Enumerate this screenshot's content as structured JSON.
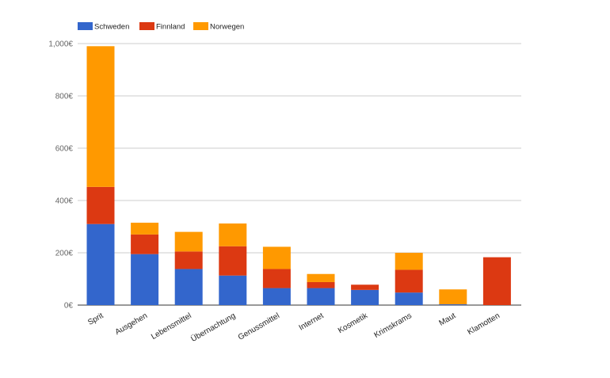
{
  "chart_data": {
    "type": "bar",
    "stacked": true,
    "categories": [
      "Sprit",
      "Ausgehen",
      "Lebensmittel",
      "Übernachtung",
      "Genussmittel",
      "Internet",
      "Kosmetik",
      "Krimskrams",
      "Maut",
      "Klamotten"
    ],
    "series": [
      {
        "name": "Schweden",
        "color": "#3366cc",
        "values": [
          310,
          195,
          138,
          113,
          65,
          65,
          58,
          48,
          3,
          0
        ]
      },
      {
        "name": "Finnland",
        "color": "#dc3912",
        "values": [
          142,
          75,
          67,
          112,
          73,
          23,
          20,
          87,
          0,
          183
        ]
      },
      {
        "name": "Norwegen",
        "color": "#ff9900",
        "values": [
          538,
          45,
          75,
          87,
          85,
          31,
          0,
          65,
          57,
          0
        ]
      }
    ],
    "y_ticks": [
      "0€",
      "200€",
      "400€",
      "600€",
      "800€",
      "1,000€"
    ],
    "ylim": [
      0,
      1000
    ],
    "grid": true,
    "legend_position": "top-left"
  }
}
